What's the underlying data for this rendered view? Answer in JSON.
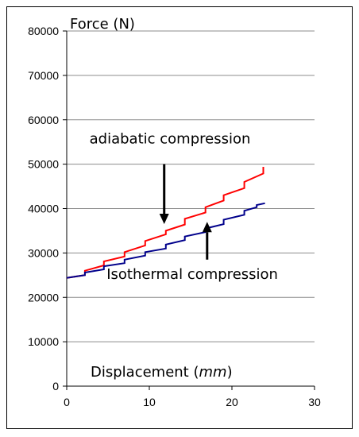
{
  "chart_data": {
    "type": "line",
    "xlabel_prefix": "Displacement (",
    "xlabel_unit": "mm",
    "xlabel_suffix": ")",
    "ylabel": "Force (N)",
    "xlim": [
      0,
      30
    ],
    "ylim": [
      0,
      80000
    ],
    "x_ticks": [
      "0",
      "10",
      "20",
      "30"
    ],
    "y_ticks": [
      "0",
      "10000",
      "20000",
      "30000",
      "40000",
      "50000",
      "60000",
      "70000",
      "80000"
    ],
    "grid": "horizontal",
    "series": [
      {
        "color": "#ff0000",
        "points": [
          [
            0,
            24400
          ],
          [
            2.2,
            25000
          ],
          [
            2.2,
            26000
          ],
          [
            4.5,
            27200
          ],
          [
            4.5,
            28100
          ],
          [
            7.0,
            29200
          ],
          [
            7.0,
            30200
          ],
          [
            9.5,
            31700
          ],
          [
            9.5,
            32700
          ],
          [
            12.0,
            34200
          ],
          [
            12.0,
            35000
          ],
          [
            14.3,
            36400
          ],
          [
            14.3,
            37700
          ],
          [
            16.8,
            39100
          ],
          [
            16.8,
            40300
          ],
          [
            19.0,
            41800
          ],
          [
            19.0,
            43000
          ],
          [
            21.5,
            44600
          ],
          [
            21.5,
            46000
          ],
          [
            23.8,
            47900
          ],
          [
            23.8,
            49400
          ]
        ]
      },
      {
        "color": "#00008b",
        "points": [
          [
            0,
            24400
          ],
          [
            2.2,
            25000
          ],
          [
            2.2,
            25600
          ],
          [
            4.5,
            26300
          ],
          [
            4.5,
            27000
          ],
          [
            7.0,
            27700
          ],
          [
            7.0,
            28500
          ],
          [
            9.5,
            29400
          ],
          [
            9.5,
            30200
          ],
          [
            12.0,
            31000
          ],
          [
            12.0,
            31900
          ],
          [
            14.3,
            32900
          ],
          [
            14.3,
            33700
          ],
          [
            16.8,
            34700
          ],
          [
            16.8,
            35500
          ],
          [
            19.0,
            36500
          ],
          [
            19.0,
            37500
          ],
          [
            21.5,
            38600
          ],
          [
            21.5,
            39500
          ],
          [
            23.0,
            40300
          ],
          [
            23.0,
            40800
          ],
          [
            24.0,
            41200
          ]
        ]
      }
    ],
    "annotations": [
      {
        "text": "adiabatic compression",
        "x": 12.5,
        "y": 54700
      },
      {
        "text": "Isothermal compression",
        "x": 15.2,
        "y": 24200
      }
    ],
    "arrows": [
      {
        "from": [
          11.8,
          50000
        ],
        "to": [
          11.8,
          36500
        ]
      },
      {
        "from": [
          17.0,
          28500
        ],
        "to": [
          17.0,
          37000
        ]
      }
    ]
  }
}
